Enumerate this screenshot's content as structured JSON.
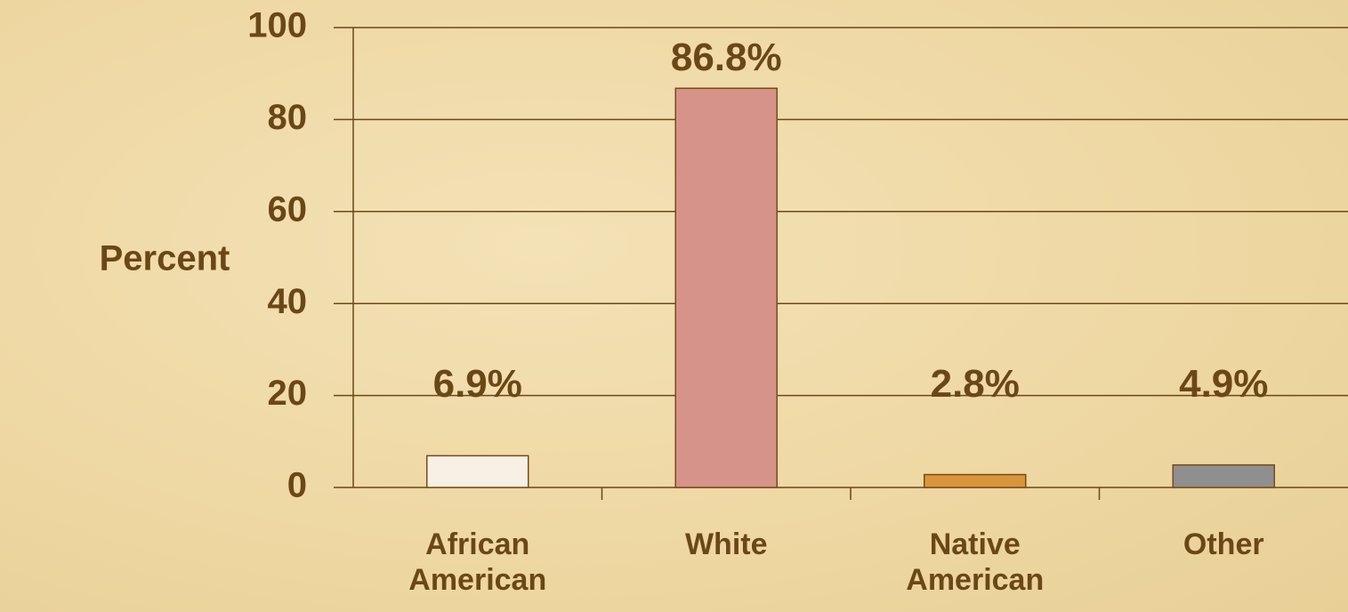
{
  "chart_data": {
    "type": "bar",
    "ylabel": "Percent",
    "categories": [
      "African American",
      "White",
      "Native American",
      "Other"
    ],
    "values": [
      6.9,
      86.8,
      2.8,
      4.9
    ],
    "value_labels": [
      "6.9%",
      "86.8%",
      "2.8%",
      "4.9%"
    ],
    "colors": [
      "#f8f0e4",
      "#d6938a",
      "#d8963c",
      "#8f8f8f"
    ],
    "ylim": [
      0,
      100
    ],
    "yticks": [
      0,
      20,
      40,
      60,
      80,
      100
    ],
    "grid": true
  }
}
